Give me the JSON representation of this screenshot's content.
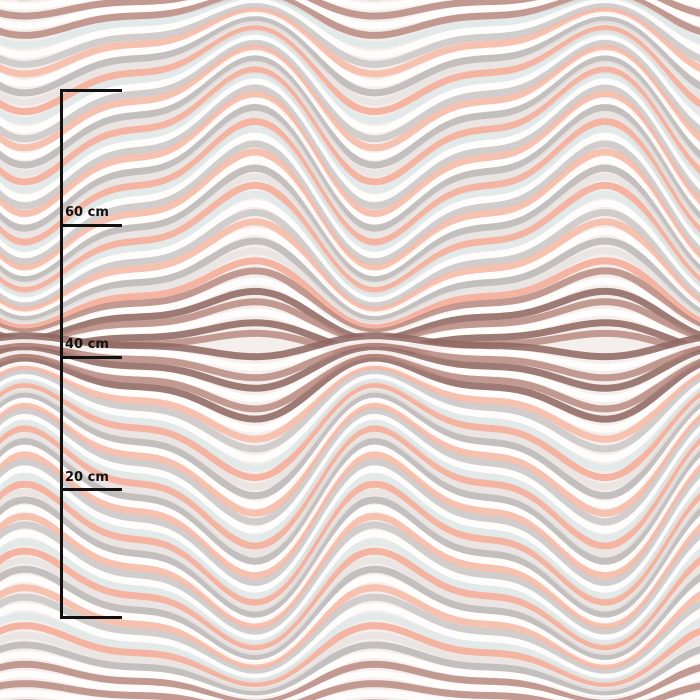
{
  "pattern": {
    "colors": [
      "#c9c7c7",
      "#b9b6b6",
      "#f7b8a6",
      "#f3a994",
      "#ffffff",
      "#e8e2e1",
      "#8e6560",
      "#b88a80",
      "#dfe6e8"
    ]
  },
  "ruler": {
    "ticks": [
      {
        "label": "",
        "value_cm": 80
      },
      {
        "label": "60 cm",
        "value_cm": 60
      },
      {
        "label": "40 cm",
        "value_cm": 40
      },
      {
        "label": "20 cm",
        "value_cm": 20
      },
      {
        "label": "",
        "value_cm": 0
      }
    ]
  }
}
